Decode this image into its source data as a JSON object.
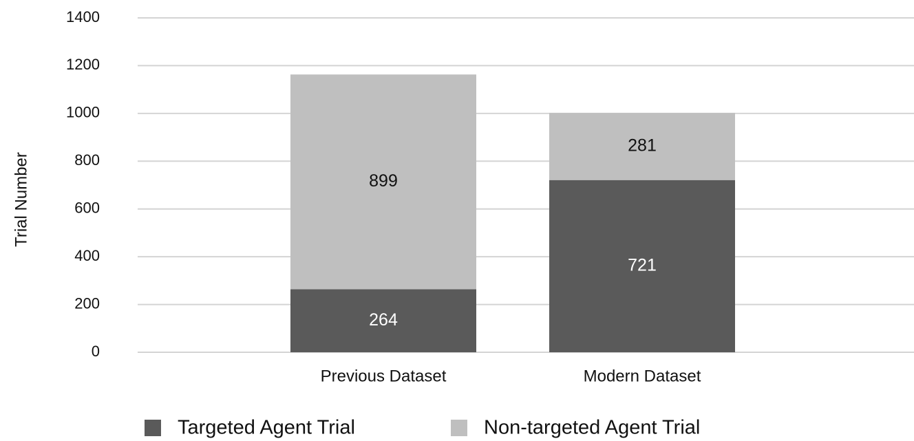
{
  "chart_data": {
    "type": "stacked_bar",
    "y_label": "Trial Number",
    "categories": [
      "Previous Dataset",
      "Modern Dataset"
    ],
    "series": [
      {
        "name": "Targeted Agent Trial",
        "color": "#5a5a5a",
        "values": [
          264,
          721
        ]
      },
      {
        "name": "Non-targeted Agent Trial",
        "color": "#bfbfbf",
        "values": [
          899,
          281
        ]
      }
    ],
    "ylim": [
      0,
      1400
    ],
    "yticks": [
      0,
      200,
      400,
      600,
      800,
      1000,
      1200,
      1400
    ],
    "grid": true,
    "legend": "bottom"
  }
}
